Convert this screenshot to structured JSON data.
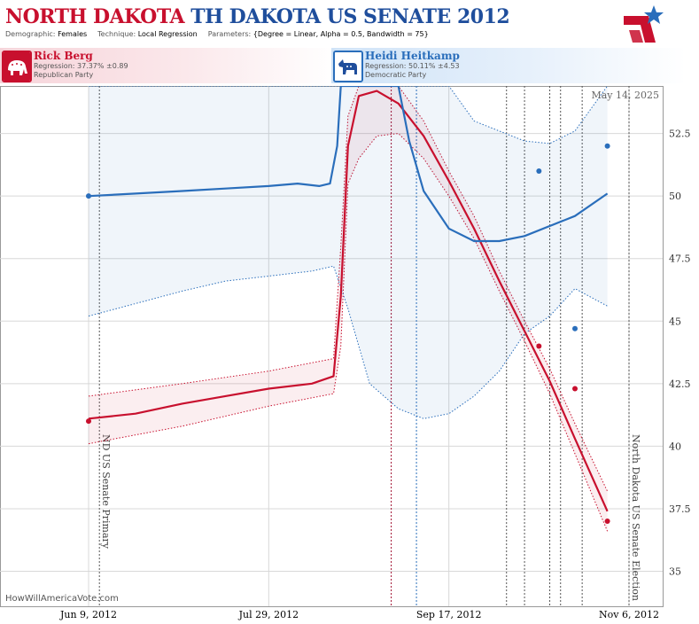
{
  "header": {
    "title_main": "NORTH DAKOTA",
    "title_sub": "TH DAKOTA US SENATE 2012",
    "demographic_label": "Demographic:",
    "demographic_value": "Females",
    "technique_label": "Technique:",
    "technique_value": "Local Regression",
    "parameters_label": "Parameters:",
    "parameters_value": "{Degree = Linear, Alpha = 0.5, Bandwidth = 75}"
  },
  "candidates": {
    "republican": {
      "name": "Rick Berg",
      "regression": "Regression: 37.37% ±0.89",
      "party": "Republican Party",
      "color": "#c8102e"
    },
    "democrat": {
      "name": "Heidi Heitkamp",
      "regression": "Regression: 50.11% ±4.53",
      "party": "Democratic Party",
      "color": "#2a6ebb"
    }
  },
  "stamp": "May 14, 2025",
  "credit": "HowWillAmericaVote.com",
  "chart_data": {
    "type": "line",
    "x_axis": {
      "ticks": [
        "Jun 9, 2012",
        "Jul 29, 2012",
        "Sep 17, 2012",
        "Nov 6, 2012"
      ],
      "range": [
        "2012-06-09",
        "2012-11-06"
      ]
    },
    "y_axis": {
      "ticks": [
        "35",
        "37.5",
        "40",
        "42.5",
        "45",
        "47.5",
        "50",
        "52.5"
      ],
      "range": [
        33.6,
        54.4
      ],
      "side": "right"
    },
    "grid": true,
    "event_lines": [
      {
        "date": "2012-06-12",
        "label": "ND US Senate Primary"
      },
      {
        "date": "2012-11-06",
        "label": "North Dakota US Senate Election"
      }
    ],
    "poll_dates": [
      "2012-09-01",
      "2012-09-08",
      "2012-10-03",
      "2012-10-08",
      "2012-10-15",
      "2012-10-18",
      "2012-10-24"
    ],
    "series": [
      {
        "name": "Rick Berg",
        "color": "#c8102e",
        "points": [
          [
            "2012-06-09",
            41.0
          ],
          [
            "2012-10-12",
            44.0
          ],
          [
            "2012-10-22",
            42.3
          ],
          [
            "2012-10-31",
            37.0
          ]
        ],
        "regression": [
          [
            "2012-06-09",
            41.1
          ],
          [
            "2012-06-22",
            41.3
          ],
          [
            "2012-07-05",
            41.7
          ],
          [
            "2012-07-17",
            42.0
          ],
          [
            "2012-07-29",
            42.3
          ],
          [
            "2012-08-10",
            42.5
          ],
          [
            "2012-08-16",
            42.8
          ],
          [
            "2012-08-18",
            46.0
          ],
          [
            "2012-08-20",
            52.0
          ],
          [
            "2012-08-23",
            54.0
          ],
          [
            "2012-08-28",
            54.2
          ],
          [
            "2012-09-03",
            53.7
          ],
          [
            "2012-09-10",
            52.4
          ],
          [
            "2012-09-17",
            50.6
          ],
          [
            "2012-09-24",
            48.7
          ],
          [
            "2012-10-01",
            46.6
          ],
          [
            "2012-10-08",
            44.6
          ],
          [
            "2012-10-15",
            42.6
          ],
          [
            "2012-10-22",
            40.3
          ],
          [
            "2012-10-31",
            37.4
          ]
        ],
        "band_upper": [
          [
            "2012-06-09",
            42.0
          ],
          [
            "2012-07-05",
            42.5
          ],
          [
            "2012-07-29",
            43.0
          ],
          [
            "2012-08-16",
            43.5
          ],
          [
            "2012-08-18",
            48.0
          ],
          [
            "2012-08-20",
            53.2
          ],
          [
            "2012-08-23",
            54.4
          ],
          [
            "2012-09-03",
            54.4
          ],
          [
            "2012-09-10",
            53.0
          ],
          [
            "2012-09-17",
            51.0
          ],
          [
            "2012-09-24",
            49.2
          ],
          [
            "2012-10-01",
            47.0
          ],
          [
            "2012-10-08",
            45.0
          ],
          [
            "2012-10-15",
            43.1
          ],
          [
            "2012-10-22",
            40.9
          ],
          [
            "2012-10-31",
            38.2
          ]
        ],
        "band_lower": [
          [
            "2012-06-09",
            40.1
          ],
          [
            "2012-07-05",
            40.8
          ],
          [
            "2012-07-29",
            41.6
          ],
          [
            "2012-08-16",
            42.1
          ],
          [
            "2012-08-18",
            44.0
          ],
          [
            "2012-08-20",
            50.5
          ],
          [
            "2012-08-23",
            51.5
          ],
          [
            "2012-08-28",
            52.4
          ],
          [
            "2012-09-03",
            52.5
          ],
          [
            "2012-09-10",
            51.5
          ],
          [
            "2012-09-17",
            50.0
          ],
          [
            "2012-09-24",
            48.3
          ],
          [
            "2012-10-01",
            46.2
          ],
          [
            "2012-10-08",
            44.2
          ],
          [
            "2012-10-15",
            42.1
          ],
          [
            "2012-10-22",
            39.7
          ],
          [
            "2012-10-31",
            36.6
          ]
        ]
      },
      {
        "name": "Heidi Heitkamp",
        "color": "#2a6ebb",
        "points": [
          [
            "2012-06-09",
            50.0
          ],
          [
            "2012-10-12",
            51.0
          ],
          [
            "2012-10-22",
            44.7
          ],
          [
            "2012-10-31",
            52.0
          ]
        ],
        "regression": [
          [
            "2012-06-09",
            50.0
          ],
          [
            "2012-06-22",
            50.1
          ],
          [
            "2012-07-05",
            50.2
          ],
          [
            "2012-07-17",
            50.3
          ],
          [
            "2012-07-29",
            50.4
          ],
          [
            "2012-08-06",
            50.5
          ],
          [
            "2012-08-12",
            50.4
          ],
          [
            "2012-08-15",
            50.5
          ],
          [
            "2012-08-17",
            52.0
          ],
          [
            "2012-08-18",
            54.4
          ],
          [
            "2012-09-03",
            54.4
          ],
          [
            "2012-09-06",
            52.2
          ],
          [
            "2012-09-10",
            50.2
          ],
          [
            "2012-09-17",
            48.7
          ],
          [
            "2012-09-24",
            48.2
          ],
          [
            "2012-10-01",
            48.2
          ],
          [
            "2012-10-08",
            48.4
          ],
          [
            "2012-10-15",
            48.8
          ],
          [
            "2012-10-22",
            49.2
          ],
          [
            "2012-10-31",
            50.1
          ]
        ],
        "band_upper": [
          [
            "2012-06-09",
            54.4
          ],
          [
            "2012-08-18",
            54.4
          ],
          [
            "2012-08-30",
            54.4
          ],
          [
            "2012-09-17",
            54.4
          ],
          [
            "2012-09-24",
            53.0
          ],
          [
            "2012-10-01",
            52.6
          ],
          [
            "2012-10-08",
            52.2
          ],
          [
            "2012-10-15",
            52.1
          ],
          [
            "2012-10-22",
            52.6
          ],
          [
            "2012-10-31",
            54.4
          ]
        ],
        "band_lower": [
          [
            "2012-06-09",
            45.2
          ],
          [
            "2012-06-22",
            45.7
          ],
          [
            "2012-07-05",
            46.2
          ],
          [
            "2012-07-17",
            46.6
          ],
          [
            "2012-07-29",
            46.8
          ],
          [
            "2012-08-10",
            47.0
          ],
          [
            "2012-08-16",
            47.2
          ],
          [
            "2012-08-20",
            45.5
          ],
          [
            "2012-08-26",
            42.5
          ],
          [
            "2012-09-03",
            41.5
          ],
          [
            "2012-09-10",
            41.1
          ],
          [
            "2012-09-17",
            41.3
          ],
          [
            "2012-09-24",
            42.0
          ],
          [
            "2012-10-01",
            43.0
          ],
          [
            "2012-10-08",
            44.5
          ],
          [
            "2012-10-15",
            45.2
          ],
          [
            "2012-10-22",
            46.3
          ],
          [
            "2012-10-31",
            45.6
          ]
        ]
      }
    ]
  }
}
